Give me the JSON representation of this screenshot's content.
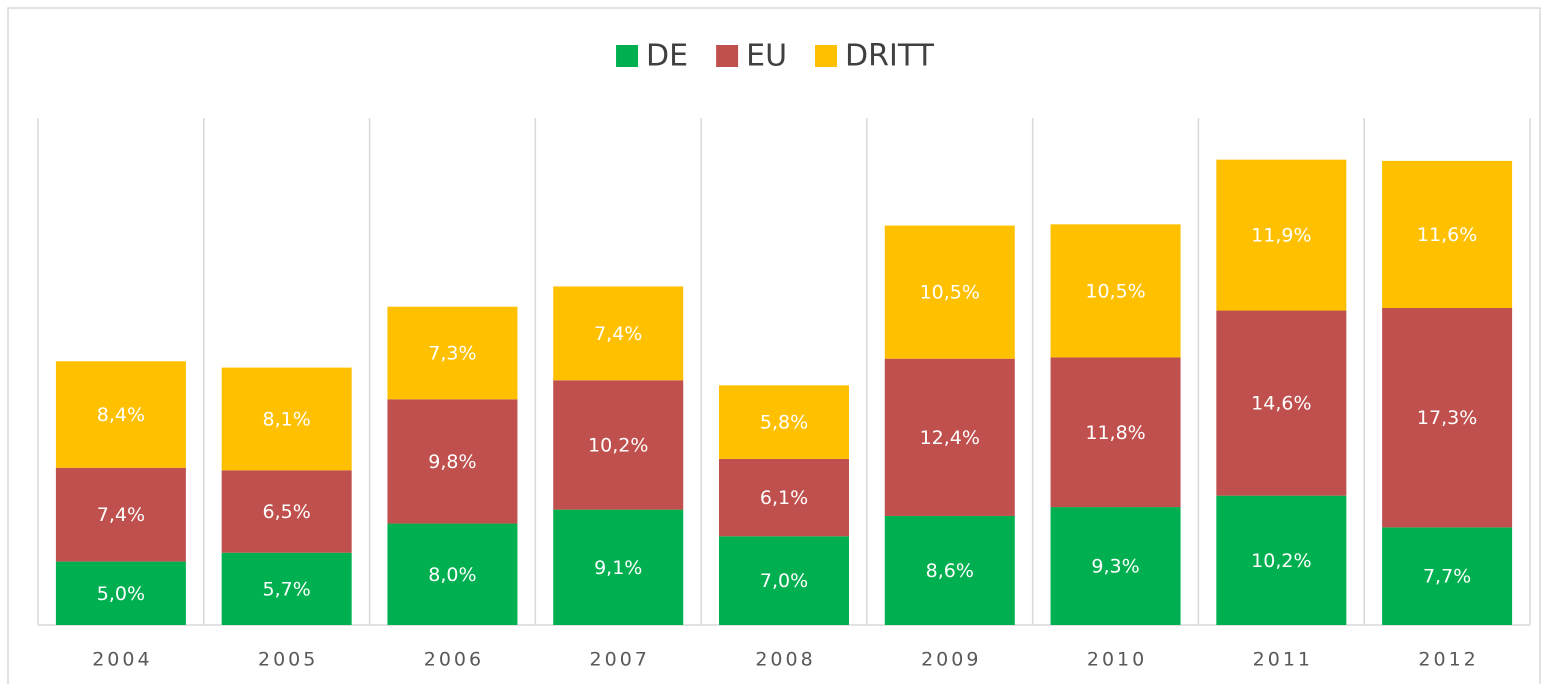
{
  "chart_data": {
    "type": "stacked_bar",
    "categories": [
      "2004",
      "2005",
      "2006",
      "2007",
      "2008",
      "2009",
      "2010",
      "2011",
      "2012"
    ],
    "series": [
      {
        "name": "DE",
        "color": "#00b050",
        "values": [
          5.0,
          5.7,
          8.0,
          9.1,
          7.0,
          8.6,
          9.3,
          10.2,
          7.7
        ],
        "value_labels": [
          "5,0%",
          "5,7%",
          "8,0%",
          "9,1%",
          "7,0%",
          "8,6%",
          "9,3%",
          "10,2%",
          "7,7%"
        ]
      },
      {
        "name": "EU",
        "color": "#c0504d",
        "values": [
          7.4,
          6.5,
          9.8,
          10.2,
          6.1,
          12.4,
          11.8,
          14.6,
          17.3
        ],
        "value_labels": [
          "7,4%",
          "6,5%",
          "9,8%",
          "10,2%",
          "6,1%",
          "12,4%",
          "11,8%",
          "14,6%",
          "17,3%"
        ]
      },
      {
        "name": "DRITT",
        "color": "#ffc000",
        "values": [
          8.4,
          8.1,
          7.3,
          7.4,
          5.8,
          10.5,
          10.5,
          11.9,
          11.6
        ],
        "value_labels": [
          "8,4%",
          "8,1%",
          "7,3%",
          "7,4%",
          "5,8%",
          "10,5%",
          "10,5%",
          "11,9%",
          "11,6%"
        ]
      }
    ],
    "legend": "top",
    "grid": true
  }
}
